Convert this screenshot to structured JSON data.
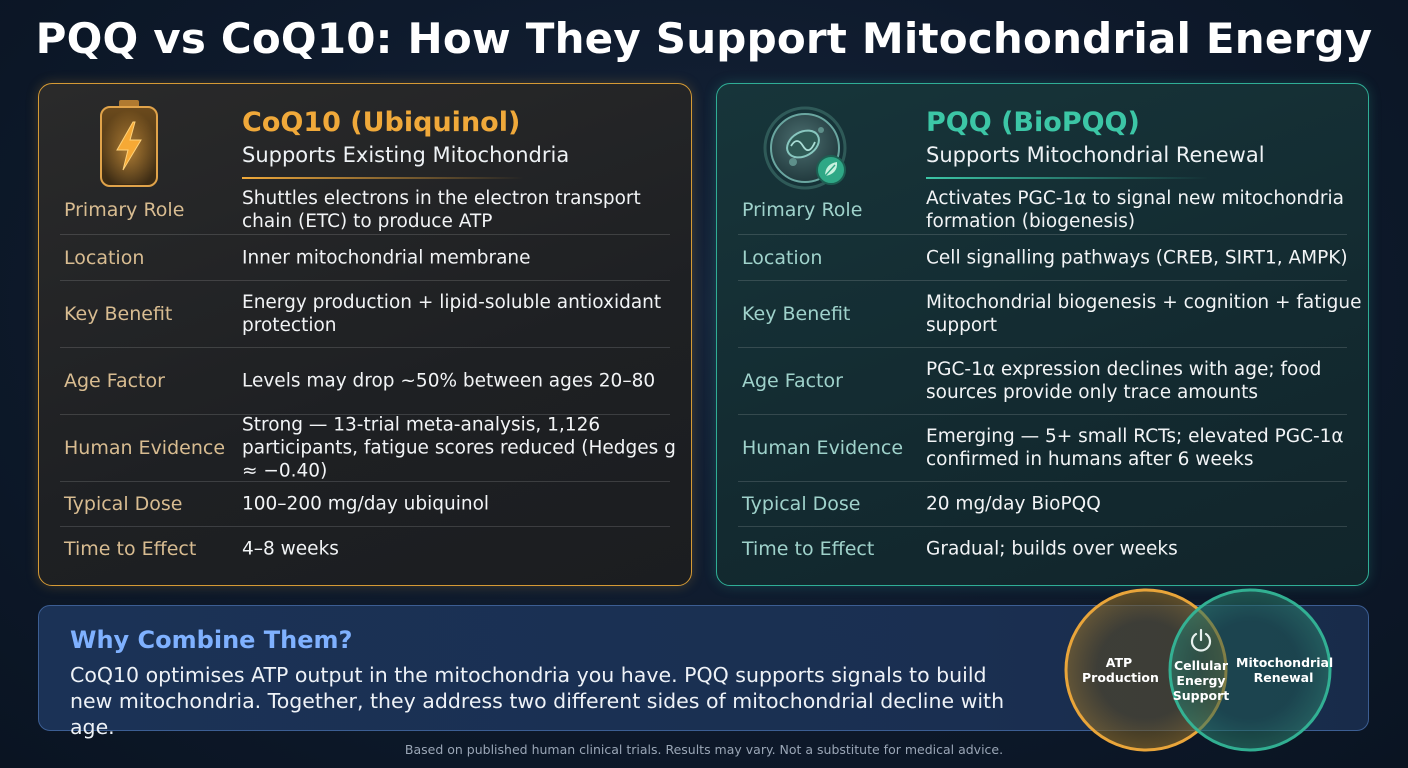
{
  "title": "PQQ vs CoQ10: How They Support Mitochondrial Energy",
  "colors": {
    "coq10_accent": "#f0a93a",
    "pqq_accent": "#3cc6a6",
    "combine_accent": "#7fb1ff"
  },
  "coq10": {
    "icon": "battery-bolt-icon",
    "title": "CoQ10 (Ubiquinol)",
    "subtitle": "Supports Existing Mitochondria",
    "rows": [
      {
        "label": "Primary Role",
        "value": "Shuttles electrons in the electron transport chain (ETC) to produce ATP"
      },
      {
        "label": "Location",
        "value": "Inner mitochondrial membrane"
      },
      {
        "label": "Key Benefit",
        "value": "Energy production + lipid-soluble antioxidant protection"
      },
      {
        "label": "Age Factor",
        "value": "Levels may drop ~50% between ages 20–80"
      },
      {
        "label": "Human Evidence",
        "value": "Strong — 13-trial meta-analysis, 1,126 participants, fatigue scores reduced (Hedges g ≈ −0.40)"
      },
      {
        "label": "Typical Dose",
        "value": "100–200 mg/day ubiquinol"
      },
      {
        "label": "Time to Effect",
        "value": "4–8 weeks"
      }
    ]
  },
  "pqq": {
    "icon": "cell-leaf-icon",
    "title": "PQQ (BioPQQ)",
    "subtitle": "Supports Mitochondrial Renewal",
    "rows": [
      {
        "label": "Primary Role",
        "value": "Activates PGC-1α to signal new mitochondria formation (biogenesis)"
      },
      {
        "label": "Location",
        "value": "Cell signalling pathways (CREB, SIRT1, AMPK)"
      },
      {
        "label": "Key Benefit",
        "value": "Mitochondrial biogenesis + cognition + fatigue support"
      },
      {
        "label": "Age Factor",
        "value": "PGC-1α expression declines with age; food sources provide only trace amounts"
      },
      {
        "label": "Human Evidence",
        "value": "Emerging — 5+ small RCTs; elevated PGC-1α confirmed in humans after 6 weeks"
      },
      {
        "label": "Typical Dose",
        "value": "20 mg/day BioPQQ"
      },
      {
        "label": "Time to Effect",
        "value": "Gradual; builds over weeks"
      }
    ]
  },
  "combine": {
    "title": "Why Combine Them?",
    "text": "CoQ10 optimises ATP output in the mitochondria you have. PQQ supports signals to build new mitochondria. Together, they address two different sides of mitochondrial decline with age."
  },
  "venn": {
    "left_label": "ATP Production",
    "center_label": "Cellular Energy Support",
    "center_icon": "power-icon",
    "right_label": "Mitochondrial Renewal"
  },
  "footer": "Based on published human clinical trials. Results may vary. Not a substitute for medical advice."
}
